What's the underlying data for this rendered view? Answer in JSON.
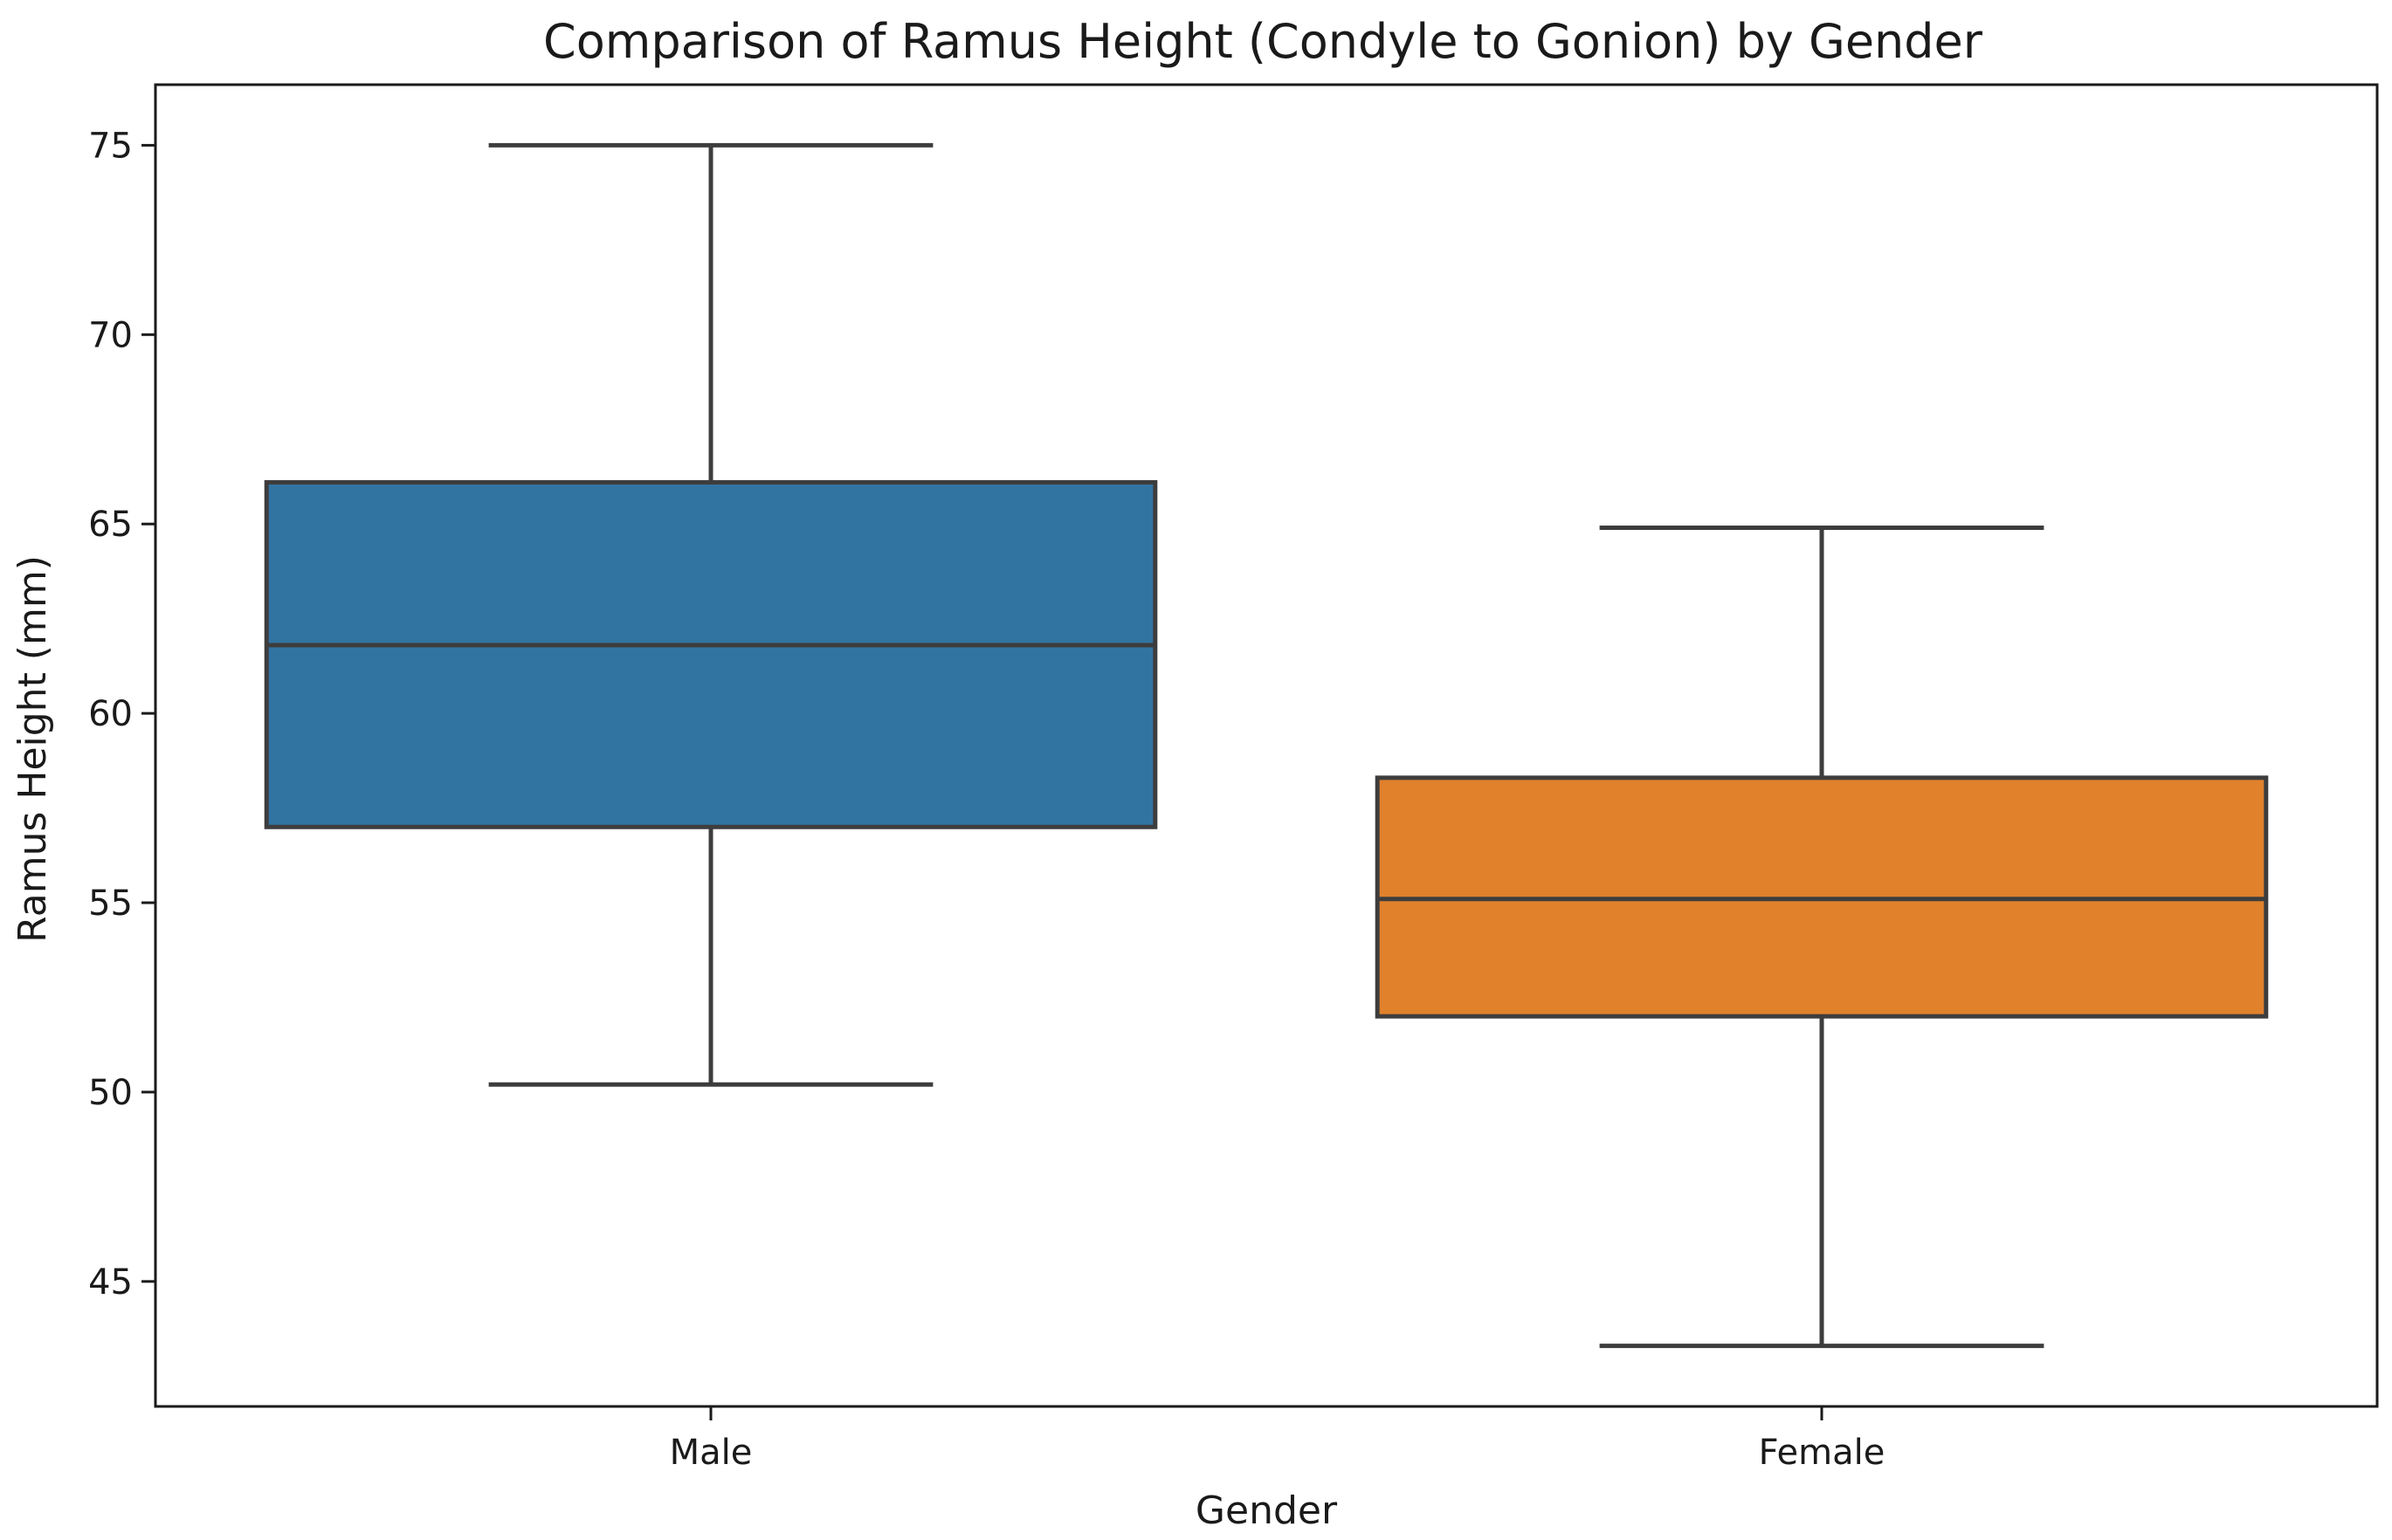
{
  "chart_data": {
    "type": "box",
    "title": "Comparison of Ramus Height (Condyle to Gonion) by Gender",
    "xlabel": "Gender",
    "ylabel": "Ramus Height (mm)",
    "ylim": [
      41.7,
      76.6
    ],
    "yticks": [
      45,
      50,
      55,
      60,
      65,
      70,
      75
    ],
    "categories": [
      "Male",
      "Female"
    ],
    "boxes": [
      {
        "name": "Male",
        "whisker_low": 50.2,
        "q1": 57.0,
        "median": 61.8,
        "q3": 66.1,
        "whisker_high": 75.0,
        "color": "#3274a1"
      },
      {
        "name": "Female",
        "whisker_low": 43.3,
        "q1": 52.0,
        "median": 55.1,
        "q3": 58.3,
        "whisker_high": 64.9,
        "color": "#e1812c"
      }
    ],
    "line_color": "#3d3d3d"
  }
}
